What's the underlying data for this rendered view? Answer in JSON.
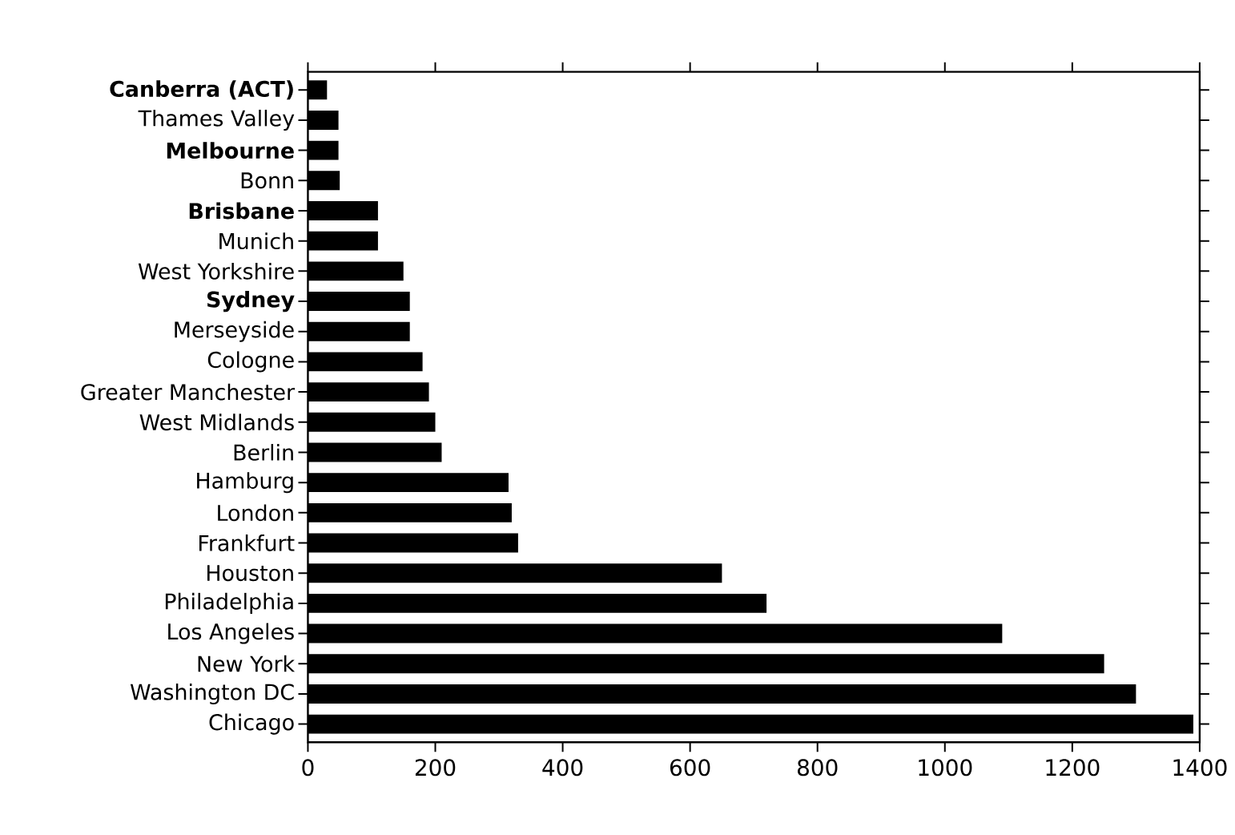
{
  "chart_data": {
    "type": "bar",
    "orientation": "horizontal",
    "categories": [
      "**Canberra (ACT)**",
      "Thames Valley",
      "**Melbourne**",
      "Bonn",
      "**Brisbane**",
      "Munich",
      "West Yorkshire",
      "**Sydney**",
      "Merseyside",
      "Cologne",
      "Greater Manchester",
      "West Midlands",
      "Berlin",
      "Hamburg",
      "London",
      "Frankfurt",
      "Houston",
      "Philadelphia",
      "Los Angeles",
      "New York",
      "Washington DC",
      "Chicago"
    ],
    "values": [
      30,
      48,
      48,
      50,
      110,
      110,
      150,
      160,
      160,
      180,
      190,
      200,
      210,
      315,
      320,
      330,
      650,
      720,
      1090,
      1250,
      1300,
      1390
    ],
    "color": "#000000",
    "xlim": [
      0,
      1400
    ],
    "xticks": [
      0,
      200,
      400,
      600,
      800,
      1000,
      1200,
      1400
    ]
  }
}
